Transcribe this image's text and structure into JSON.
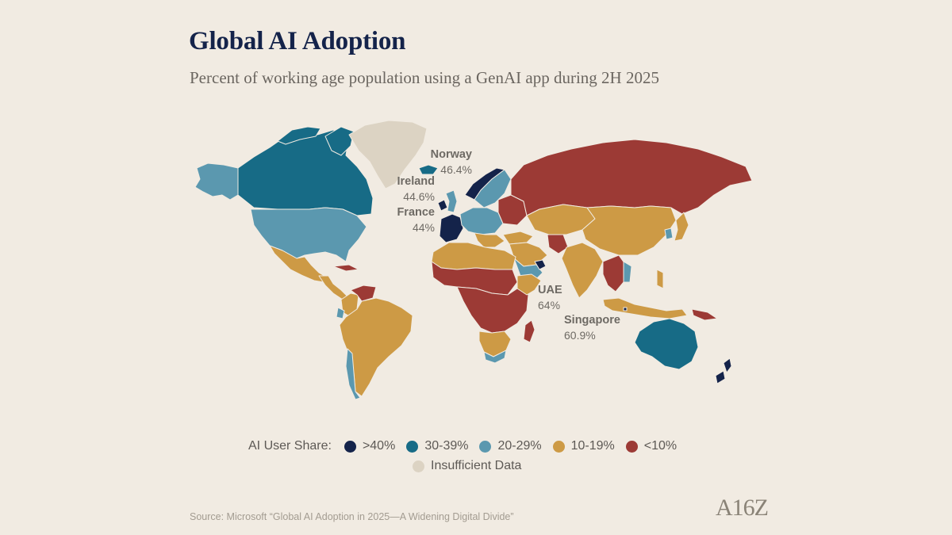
{
  "title": "Global AI Adoption",
  "subtitle": "Percent of working age population using a GenAI app during 2H 2025",
  "colors": {
    "gt40": "#14234a",
    "c30_39": "#176b86",
    "c20_29": "#5b98af",
    "c10_19": "#cd9a45",
    "lt10": "#9c3a35",
    "insufficient": "#dcd3c3"
  },
  "callouts": [
    {
      "country": "Norway",
      "value": "46.4%"
    },
    {
      "country": "Ireland",
      "value": "44.6%"
    },
    {
      "country": "France",
      "value": "44%"
    },
    {
      "country": "UAE",
      "value": "64%"
    },
    {
      "country": "Singapore",
      "value": "60.9%"
    }
  ],
  "legend": {
    "label": "AI User Share:",
    "items": [
      {
        "label": ">40%",
        "color": "#14234a"
      },
      {
        "label": "30-39%",
        "color": "#176b86"
      },
      {
        "label": "20-29%",
        "color": "#5b98af"
      },
      {
        "label": "10-19%",
        "color": "#cd9a45"
      },
      {
        "label": "<10%",
        "color": "#9c3a35"
      },
      {
        "label": "Insufficient Data",
        "color": "#dcd3c3"
      }
    ]
  },
  "source": "Source: Microsoft “Global AI Adoption in 2025—A Widening Digital Divide”",
  "logo_text": "A16Z"
}
